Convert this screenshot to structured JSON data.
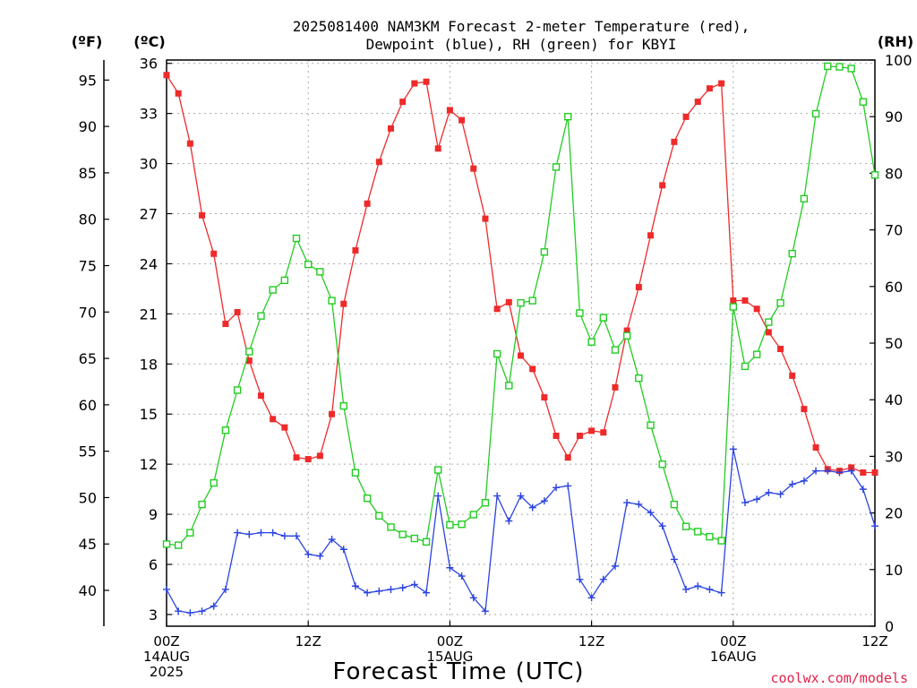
{
  "title_line1": "2025081400 NAM3KM Forecast 2-meter Temperature (red),",
  "title_line2": "Dewpoint (blue), RH (green) for KBYI",
  "unit_f": "(ºF)",
  "unit_c": "(ºC)",
  "unit_rh": "(RH)",
  "xlabel": "Forecast Time (UTC)",
  "credit": "coolwx.com/models",
  "chart_data": {
    "type": "line",
    "x_hours": [
      0,
      1,
      2,
      3,
      4,
      5,
      6,
      7,
      8,
      9,
      10,
      11,
      12,
      13,
      14,
      15,
      16,
      17,
      18,
      19,
      20,
      21,
      22,
      23,
      24,
      25,
      26,
      27,
      28,
      29,
      30,
      31,
      32,
      33,
      34,
      35,
      36,
      37,
      38,
      39,
      40,
      41,
      42,
      43,
      44,
      45,
      46,
      47,
      48,
      49,
      50,
      51,
      52,
      53,
      54,
      55,
      56,
      57,
      58,
      59,
      60
    ],
    "x_range": [
      0,
      60
    ],
    "x_ticks": [
      {
        "h": 0,
        "lines": [
          "00Z",
          "14AUG",
          "2025"
        ]
      },
      {
        "h": 12,
        "lines": [
          "12Z"
        ]
      },
      {
        "h": 24,
        "lines": [
          "00Z",
          "15AUG"
        ]
      },
      {
        "h": 36,
        "lines": [
          "12Z"
        ]
      },
      {
        "h": 48,
        "lines": [
          "00Z",
          "16AUG"
        ]
      },
      {
        "h": 60,
        "lines": [
          "12Z"
        ]
      }
    ],
    "y_left_celsius": {
      "range": [
        2.3,
        36.2
      ],
      "ticks": [
        3,
        6,
        9,
        12,
        15,
        18,
        21,
        24,
        27,
        30,
        33,
        36
      ]
    },
    "y_left_fahrenheit": {
      "ticks": [
        40,
        45,
        50,
        55,
        60,
        65,
        70,
        75,
        80,
        85,
        90,
        95
      ]
    },
    "y_right_rh": {
      "range": [
        0,
        100
      ],
      "ticks": [
        0,
        10,
        20,
        30,
        40,
        50,
        60,
        70,
        80,
        90,
        100
      ]
    },
    "grid": true,
    "series": [
      {
        "name": "Temperature",
        "axis": "celsius",
        "color": "#ee2a2a",
        "marker": "filled-square",
        "values": [
          35.3,
          34.2,
          31.2,
          26.9,
          24.6,
          20.4,
          21.1,
          18.2,
          16.1,
          14.7,
          14.2,
          12.4,
          12.3,
          12.5,
          15.0,
          21.6,
          24.8,
          27.6,
          30.1,
          32.1,
          33.7,
          34.8,
          34.9,
          30.9,
          33.2,
          32.6,
          29.7,
          26.7,
          21.3,
          21.7,
          18.5,
          17.7,
          16.0,
          13.7,
          12.4,
          13.7,
          14.0,
          13.9,
          16.6,
          20.0,
          22.6,
          25.7,
          28.7,
          31.3,
          32.8,
          33.7,
          34.5,
          34.8,
          21.8,
          21.8,
          21.3,
          19.9,
          18.9,
          17.3,
          15.3,
          13.0,
          11.7,
          11.6,
          11.8,
          11.5,
          11.5
        ]
      },
      {
        "name": "Dewpoint",
        "axis": "celsius",
        "color": "#2a43e0",
        "marker": "plus",
        "values": [
          4.5,
          3.2,
          3.1,
          3.2,
          3.5,
          4.5,
          7.9,
          7.8,
          7.9,
          7.9,
          7.7,
          7.7,
          6.6,
          6.5,
          7.5,
          6.9,
          4.7,
          4.3,
          4.4,
          4.5,
          4.6,
          4.8,
          4.3,
          10.1,
          5.8,
          5.3,
          4.0,
          3.2,
          10.1,
          8.6,
          10.1,
          9.4,
          9.8,
          10.6,
          10.7,
          5.1,
          4.0,
          5.1,
          5.9,
          9.7,
          9.6,
          9.1,
          8.3,
          6.3,
          4.5,
          4.7,
          4.5,
          4.3,
          12.9,
          9.7,
          9.9,
          10.3,
          10.2,
          10.8,
          11.0,
          11.6,
          11.6,
          11.5,
          11.6,
          10.5,
          8.3
        ]
      },
      {
        "name": "RH",
        "axis": "rh",
        "color": "#22cc22",
        "marker": "open-square",
        "values": [
          14.5,
          14.3,
          16.5,
          21.5,
          25.3,
          34.6,
          41.7,
          48.5,
          54.8,
          59.4,
          61.1,
          68.5,
          63.9,
          62.6,
          57.5,
          38.9,
          27.1,
          22.6,
          19.5,
          17.5,
          16.2,
          15.5,
          14.9,
          27.6,
          17.9,
          18.0,
          19.7,
          21.8,
          48.1,
          42.5,
          57.1,
          57.5,
          66.1,
          81.1,
          90.0,
          55.3,
          50.2,
          54.5,
          48.8,
          51.3,
          43.8,
          35.5,
          28.6,
          21.5,
          17.6,
          16.7,
          15.8,
          15.1,
          56.4,
          45.9,
          48.0,
          53.7,
          57.1,
          65.8,
          75.5,
          90.5,
          98.9,
          98.8,
          98.5,
          92.6,
          79.7
        ]
      }
    ]
  }
}
